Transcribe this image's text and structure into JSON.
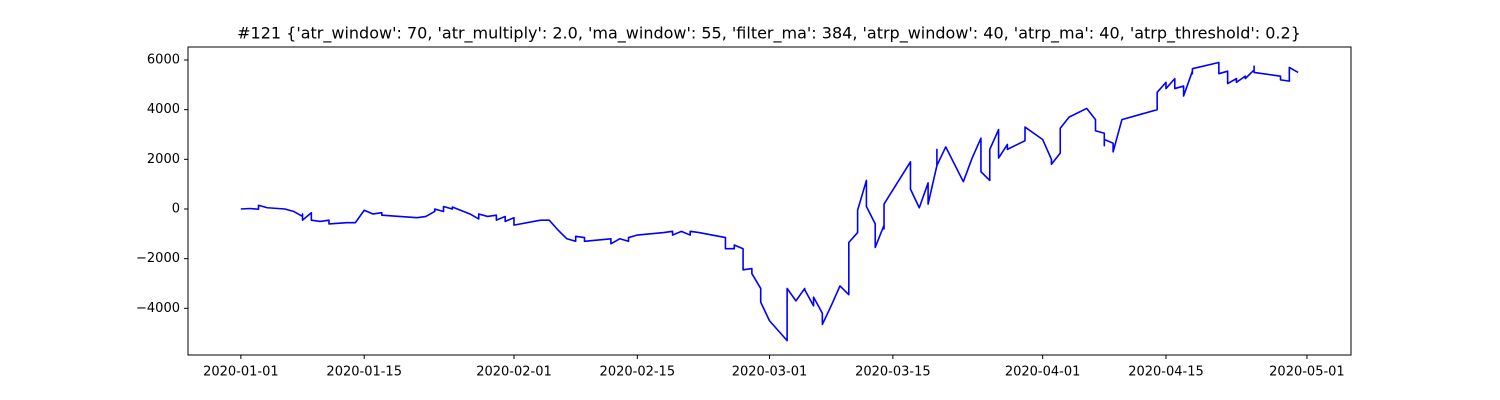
{
  "chart_data": {
    "type": "line",
    "title": "#121 {'atr_window': 70, 'atr_multiply': 2.0, 'ma_window': 55, 'filter_ma': 384, 'atrp_window': 40, 'atrp_ma': 40, 'atrp_threshold': 0.2}",
    "color": "#0000ff",
    "xlim": [
      "2019-12-26",
      "2020-05-06"
    ],
    "xticks": [
      "2020-01-01",
      "2020-01-15",
      "2020-02-01",
      "2020-02-15",
      "2020-03-01",
      "2020-03-15",
      "2020-04-01",
      "2020-04-15",
      "2020-05-01"
    ],
    "ylim": [
      -5880,
      6524
    ],
    "yticks": [
      {
        "value": -4000,
        "label": "−4000"
      },
      {
        "value": -2000,
        "label": "−2000"
      },
      0,
      2000,
      4000,
      6000
    ],
    "x": [
      "2020-01-01",
      "2020-01-02",
      "2020-01-03",
      "2020-01-03",
      "2020-01-04",
      "2020-01-06",
      "2020-01-07",
      "2020-01-08",
      "2020-01-08",
      "2020-01-08",
      "2020-01-09",
      "2020-01-09",
      "2020-01-10",
      "2020-01-11",
      "2020-01-11",
      "2020-01-13",
      "2020-01-14",
      "2020-01-15",
      "2020-01-16",
      "2020-01-17",
      "2020-01-17",
      "2020-01-21",
      "2020-01-22",
      "2020-01-23",
      "2020-01-23",
      "2020-01-24",
      "2020-01-24",
      "2020-01-25",
      "2020-01-25",
      "2020-01-27",
      "2020-01-28",
      "2020-01-28",
      "2020-01-29",
      "2020-01-30",
      "2020-01-30",
      "2020-01-31",
      "2020-01-31",
      "2020-02-01",
      "2020-02-01",
      "2020-02-04",
      "2020-02-05",
      "2020-02-06",
      "2020-02-07",
      "2020-02-08",
      "2020-02-08",
      "2020-02-09",
      "2020-02-09",
      "2020-02-12",
      "2020-02-12",
      "2020-02-13",
      "2020-02-14",
      "2020-02-14",
      "2020-02-15",
      "2020-02-18",
      "2020-02-19",
      "2020-02-19",
      "2020-02-20",
      "2020-02-21",
      "2020-02-21",
      "2020-02-22",
      "2020-02-25",
      "2020-02-25",
      "2020-02-26",
      "2020-02-26",
      "2020-02-27",
      "2020-02-27",
      "2020-02-27",
      "2020-02-28",
      "2020-02-28",
      "2020-02-29",
      "2020-02-29",
      "2020-03-01",
      "2020-03-03",
      "2020-03-03",
      "2020-03-03",
      "2020-03-04",
      "2020-03-05",
      "2020-03-05",
      "2020-03-06",
      "2020-03-06",
      "2020-03-07",
      "2020-03-07",
      "2020-03-08",
      "2020-03-09",
      "2020-03-10",
      "2020-03-10",
      "2020-03-10",
      "2020-03-11",
      "2020-03-11",
      "2020-03-12",
      "2020-03-12",
      "2020-03-13",
      "2020-03-13",
      "2020-03-14",
      "2020-03-14",
      "2020-03-14",
      "2020-03-17",
      "2020-03-17",
      "2020-03-18",
      "2020-03-19",
      "2020-03-19",
      "2020-03-20",
      "2020-03-20",
      "2020-03-20",
      "2020-03-21",
      "2020-03-23",
      "2020-03-24",
      "2020-03-25",
      "2020-03-25",
      "2020-03-26",
      "2020-03-26",
      "2020-03-27",
      "2020-03-27",
      "2020-03-28",
      "2020-03-28",
      "2020-03-30",
      "2020-03-30",
      "2020-04-01",
      "2020-04-02",
      "2020-04-02",
      "2020-04-03",
      "2020-04-03",
      "2020-04-04",
      "2020-04-06",
      "2020-04-07",
      "2020-04-07",
      "2020-04-08",
      "2020-04-08",
      "2020-04-08",
      "2020-04-09",
      "2020-04-09",
      "2020-04-09",
      "2020-04-10",
      "2020-04-14",
      "2020-04-14",
      "2020-04-14",
      "2020-04-15",
      "2020-04-15",
      "2020-04-16",
      "2020-04-16",
      "2020-04-17",
      "2020-04-17",
      "2020-04-18",
      "2020-04-18",
      "2020-04-18",
      "2020-04-21",
      "2020-04-21",
      "2020-04-21",
      "2020-04-22",
      "2020-04-22",
      "2020-04-23",
      "2020-04-23",
      "2020-04-24",
      "2020-04-24",
      "2020-04-25",
      "2020-04-25",
      "2020-04-25",
      "2020-04-28",
      "2020-04-28",
      "2020-04-29",
      "2020-04-29",
      "2020-04-30"
    ],
    "values": [
      0,
      20,
      -10,
      150,
      50,
      0,
      -100,
      -300,
      -200,
      -450,
      -150,
      -450,
      -500,
      -450,
      -600,
      -550,
      -550,
      -50,
      -200,
      -150,
      -250,
      -350,
      -300,
      -100,
      0,
      -100,
      100,
      0,
      80,
      -200,
      -400,
      -200,
      -300,
      -250,
      -450,
      -300,
      -500,
      -350,
      -650,
      -450,
      -450,
      -850,
      -1200,
      -1300,
      -1100,
      -1150,
      -1300,
      -1200,
      -1400,
      -1200,
      -1300,
      -1150,
      -1050,
      -950,
      -900,
      -1050,
      -900,
      -1050,
      -900,
      -950,
      -1150,
      -1600,
      -1600,
      -1450,
      -1600,
      -2450,
      -2450,
      -2400,
      -2600,
      -3200,
      -3750,
      -4500,
      -5300,
      -4800,
      -3200,
      -3700,
      -3200,
      -3250,
      -3900,
      -3550,
      -4200,
      -4650,
      -3900,
      -3100,
      -3450,
      -2450,
      -1350,
      -950,
      -50,
      1150,
      100,
      -600,
      -1550,
      -650,
      -800,
      200,
      1900,
      800,
      50,
      1050,
      200,
      1750,
      2400,
      1750,
      2500,
      1100,
      2050,
      2850,
      1500,
      1150,
      2400,
      3200,
      2050,
      2600,
      2400,
      2750,
      3300,
      2800,
      2000,
      1800,
      2250,
      3250,
      3700,
      4050,
      3600,
      3150,
      3050,
      2550,
      2800,
      2650,
      2400,
      2300,
      3600,
      4000,
      4250,
      4700,
      5100,
      4850,
      5250,
      4850,
      4950,
      4550,
      5550,
      5450,
      5650,
      5900,
      5600,
      5450,
      5550,
      5050,
      5250,
      5100,
      5350,
      5250,
      5600,
      5750,
      5500,
      5350,
      5200,
      5150,
      5700,
      5500
    ]
  }
}
